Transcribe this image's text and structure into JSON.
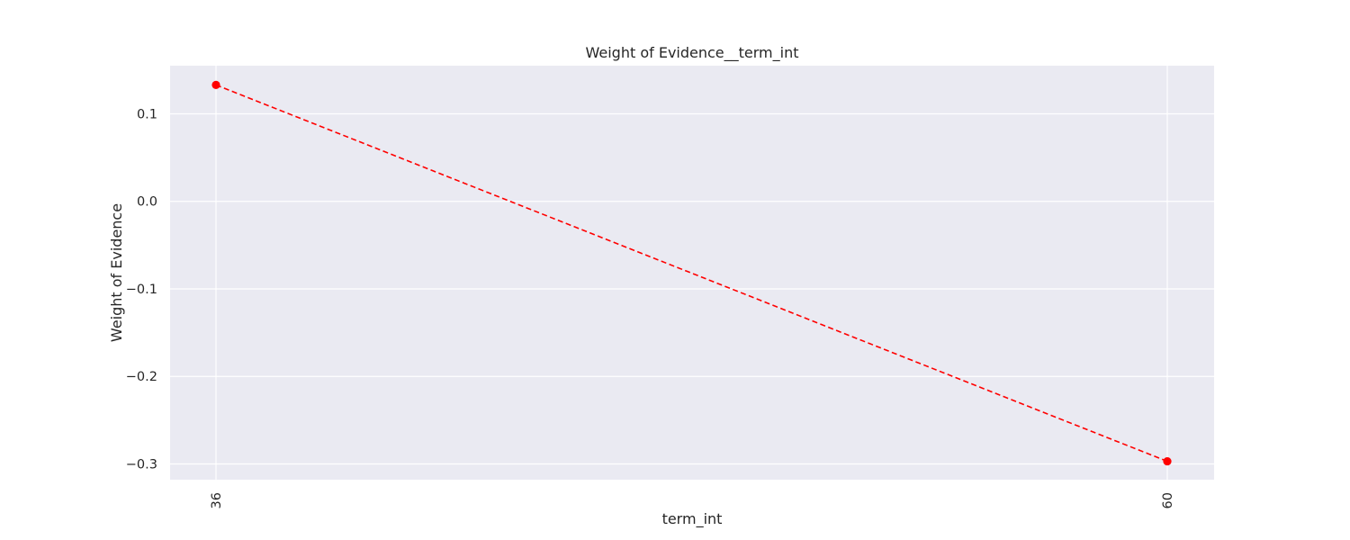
{
  "chart_data": {
    "type": "line",
    "title": "Weight of Evidence__term_int",
    "xlabel": "term_int",
    "ylabel": "Weight of Evidence",
    "categories": [
      "36",
      "60"
    ],
    "series": [
      {
        "values": [
          0.133,
          -0.297
        ]
      }
    ],
    "yticks": [
      0.1,
      0.0,
      -0.1,
      -0.2,
      -0.3
    ],
    "ytick_labels": [
      "0.1",
      "0.0",
      "−0.1",
      "−0.2",
      "−0.3"
    ],
    "ylim": [
      -0.318,
      0.155
    ],
    "grid": true,
    "line_color": "#ff0000",
    "line_style": "dashed",
    "marker": "circle",
    "background_color": "#eaeaf2",
    "grid_color": "#ffffff"
  }
}
